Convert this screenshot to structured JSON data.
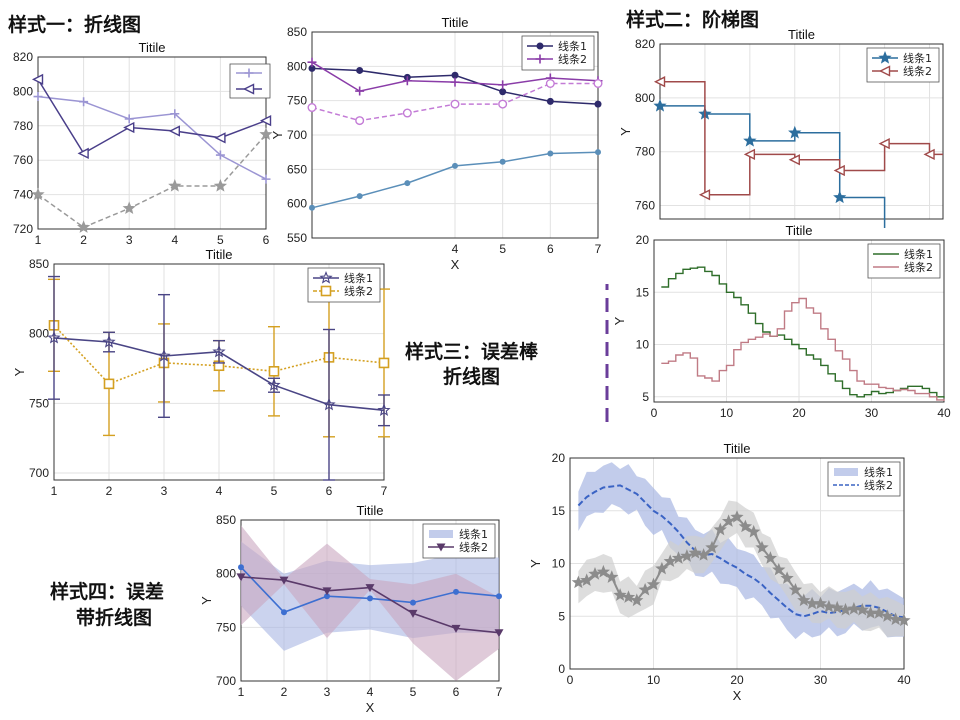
{
  "captions": {
    "style1": "样式一：折线图",
    "style2": "样式二：阶梯图",
    "style3_a": "样式三：误差棒",
    "style3_b": "折线图",
    "style4_a": "样式四：误差",
    "style4_b": "带折线图"
  },
  "colors": {
    "divider": "#6a3d9a",
    "purple_light": "#9b95d3",
    "purple_dark": "#4a3f8a",
    "gray_dash": "#9a9a9a",
    "steel_blue": "#5b8fb9",
    "magenta": "#8a3ca8",
    "magenta_light": "#c37bd6",
    "navy": "#2e2a6b",
    "stair_blue": "#2c6e9e",
    "stair_red": "#a04a4a",
    "dark_green": "#2f6e2a",
    "rose": "#c07b85",
    "gold": "#d4a021",
    "err_purple": "#4a4585",
    "band_mauve": "#c9a7bf",
    "band_blue": "#a8b6e3",
    "line_blue": "#3d6fd1",
    "line_purple": "#5a3a6a",
    "dashed_blue": "#3a63c4",
    "gray_star": "#8c8c8c"
  },
  "chart_data": [
    {
      "id": "style1",
      "type": "line",
      "title": "Titile",
      "xlabel": "",
      "ylabel": "",
      "x": [
        1,
        2,
        3,
        4,
        5,
        6
      ],
      "xlim": [
        1,
        6
      ],
      "ylim": [
        720,
        820
      ],
      "yticks": [
        720,
        740,
        760,
        780,
        800,
        820
      ],
      "xticks": [
        1,
        2,
        3,
        4,
        5,
        6
      ],
      "grid": true,
      "legend": "top-right (cropped)",
      "series": [
        {
          "values": [
            797,
            794,
            784,
            787,
            763,
            749
          ],
          "color": "#9b95d3",
          "marker": "plus",
          "dash": false
        },
        {
          "values": [
            807,
            764,
            779,
            777,
            773,
            783
          ],
          "color": "#4a3f8a",
          "marker": "triangle-left",
          "dash": false
        },
        {
          "values": [
            740,
            721,
            732,
            745,
            745,
            775
          ],
          "color": "#9a9a9a",
          "marker": "star",
          "dash": true
        }
      ]
    },
    {
      "id": "style1b",
      "type": "line",
      "title": "Titile",
      "xlabel": "X",
      "ylabel": "Y",
      "x": [
        1,
        2,
        3,
        4,
        5,
        6,
        7
      ],
      "xlim": [
        1,
        7
      ],
      "ylim": [
        550,
        850
      ],
      "yticks": [
        550,
        600,
        650,
        700,
        750,
        800,
        850
      ],
      "xticks": [
        4,
        5,
        6,
        7
      ],
      "grid": true,
      "legend": "top-right",
      "series": [
        {
          "name": "线条1",
          "values": [
            797,
            794,
            784,
            787,
            763,
            749,
            745
          ],
          "color": "#2e2a6b",
          "marker": "circle",
          "dash": false
        },
        {
          "name": "线条2",
          "values": [
            806,
            764,
            779,
            777,
            773,
            783,
            779
          ],
          "color": "#8a3ca8",
          "marker": "plus",
          "dash": false
        },
        {
          "values": [
            740,
            721,
            732,
            745,
            745,
            775,
            775
          ],
          "color": "#c37bd6",
          "marker": "circle-open",
          "dash": true
        },
        {
          "values": [
            594,
            611,
            630,
            655,
            661,
            673,
            675
          ],
          "color": "#5b8fb9",
          "marker": "dot",
          "dash": false
        }
      ]
    },
    {
      "id": "style2a",
      "type": "line",
      "subtype": "stairs",
      "title": "Titile",
      "xlabel": "",
      "ylabel": "Y",
      "x": [
        1,
        2,
        3,
        4,
        5,
        6,
        7
      ],
      "xlim": [
        1,
        7.3
      ],
      "ylim": [
        755,
        820
      ],
      "yticks": [
        760,
        780,
        800,
        820
      ],
      "grid": true,
      "legend": "top-right",
      "series": [
        {
          "name": "线条1",
          "values": [
            797,
            794,
            784,
            787,
            763,
            749,
            746
          ],
          "color": "#2c6e9e",
          "marker": "star"
        },
        {
          "name": "线条2",
          "values": [
            806,
            764,
            779,
            777,
            773,
            783,
            779
          ],
          "color": "#a04a4a",
          "marker": "triangle-left"
        }
      ]
    },
    {
      "id": "style2b",
      "type": "line",
      "subtype": "stairs",
      "title": "Titile",
      "xlabel": "",
      "ylabel": "Y",
      "xlim": [
        0,
        40
      ],
      "ylim": [
        4.5,
        20
      ],
      "xticks": [
        0,
        10,
        20,
        30,
        40
      ],
      "yticks": [
        5,
        10,
        15,
        20
      ],
      "grid": true,
      "legend": "top-right",
      "series": [
        {
          "name": "线条1",
          "color": "#2f6e2a",
          "values": [
            15.5,
            16.3,
            16.8,
            17.2,
            17.3,
            17.4,
            17.0,
            16.6,
            15.8,
            15.0,
            14.5,
            13.8,
            13.0,
            12.0,
            11.2,
            10.8,
            10.9,
            10.5,
            10.0,
            9.6,
            9.0,
            8.6,
            8.0,
            7.2,
            6.5,
            5.8,
            5.2,
            5.0,
            5.2,
            5.5,
            5.3,
            5.4,
            5.6,
            5.8,
            6.0,
            6.0,
            5.8,
            5.4,
            5.0,
            4.9
          ]
        },
        {
          "name": "线条2",
          "color": "#c07b85",
          "values": [
            8.2,
            8.4,
            9.0,
            9.2,
            8.7,
            7.0,
            6.8,
            6.5,
            7.5,
            8.0,
            9.5,
            10.2,
            10.5,
            10.7,
            11.0,
            10.8,
            11.5,
            13.2,
            14.0,
            14.4,
            13.5,
            13.0,
            11.5,
            10.5,
            9.4,
            8.6,
            7.5,
            6.5,
            6.2,
            6.2,
            5.9,
            5.8,
            5.6,
            5.7,
            5.6,
            5.3,
            5.3,
            5.0,
            4.7,
            4.6
          ]
        }
      ]
    },
    {
      "id": "style3",
      "type": "line",
      "subtype": "errorbar",
      "title": "Titile",
      "xlabel": "",
      "ylabel": "Y",
      "x": [
        1,
        2,
        3,
        4,
        5,
        6,
        7
      ],
      "xlim": [
        1,
        7
      ],
      "ylim": [
        695,
        850
      ],
      "yticks": [
        700,
        750,
        800,
        850
      ],
      "xticks": [
        1,
        2,
        3,
        4,
        5,
        6,
        7
      ],
      "grid": true,
      "legend": "top-right",
      "series": [
        {
          "name": "线条1",
          "values": [
            797,
            794,
            784,
            787,
            763,
            749,
            745
          ],
          "err": [
            44,
            7,
            44,
            8,
            5,
            54,
            11
          ],
          "color": "#4a4585",
          "marker": "hexagram"
        },
        {
          "name": "线条2",
          "values": [
            806,
            764,
            779,
            777,
            773,
            783,
            779
          ],
          "err": [
            33,
            37,
            28,
            18,
            32,
            57,
            53
          ],
          "color": "#d4a021",
          "marker": "square",
          "dash": true
        }
      ]
    },
    {
      "id": "style4a",
      "type": "area",
      "subtype": "errorband",
      "title": "Titile",
      "xlabel": "X",
      "ylabel": "Y",
      "x": [
        1,
        2,
        3,
        4,
        5,
        6,
        7
      ],
      "xlim": [
        1,
        7
      ],
      "ylim": [
        700,
        850
      ],
      "yticks": [
        700,
        750,
        800,
        850
      ],
      "xticks": [
        1,
        2,
        3,
        4,
        5,
        6,
        7
      ],
      "grid": true,
      "legend": "top-right",
      "series": [
        {
          "name": "线条1",
          "values": [
            806,
            764,
            779,
            777,
            773,
            783,
            779
          ],
          "upper": [
            830,
            800,
            812,
            808,
            810,
            818,
            815
          ],
          "lower": [
            770,
            728,
            745,
            748,
            740,
            745,
            745
          ],
          "color": "#3d6fd1",
          "band": "#a8b6e3"
        },
        {
          "name": "线条2",
          "values": [
            797,
            794,
            784,
            787,
            763,
            749,
            745
          ],
          "upper": [
            845,
            795,
            828,
            795,
            790,
            800,
            778
          ],
          "lower": [
            752,
            790,
            740,
            785,
            735,
            700,
            730
          ],
          "color": "#5a3a6a",
          "band": "#c9a7bf",
          "marker": "triangle-down"
        }
      ]
    },
    {
      "id": "style4b",
      "type": "area",
      "subtype": "errorband",
      "title": "Titile",
      "xlabel": "X",
      "ylabel": "Y",
      "xlim": [
        0,
        40
      ],
      "ylim": [
        0,
        20
      ],
      "xticks": [
        0,
        10,
        20,
        30,
        40
      ],
      "yticks": [
        0,
        5,
        10,
        15,
        20
      ],
      "grid": true,
      "legend": "top-right",
      "series": [
        {
          "name": "线条1",
          "color": "#a8b6e3",
          "band_only": true
        },
        {
          "name": "线条2",
          "color": "#3a63c4",
          "dash": true,
          "values": [
            15.5,
            16.3,
            16.8,
            17.2,
            17.3,
            17.4,
            17.0,
            16.6,
            15.8,
            15.0,
            14.5,
            13.8,
            13.0,
            12.0,
            11.2,
            10.8,
            10.9,
            10.5,
            10.0,
            9.6,
            9.0,
            8.6,
            8.0,
            7.2,
            6.5,
            5.8,
            5.2,
            5.0,
            5.2,
            5.5,
            5.3,
            5.4,
            5.6,
            5.8,
            6.0,
            6.0,
            5.8,
            5.4,
            5.0,
            4.9
          ],
          "spread": 2.2
        },
        {
          "color": "#8c8c8c",
          "marker": "star",
          "values": [
            8.2,
            8.4,
            9.0,
            9.2,
            8.7,
            7.0,
            6.8,
            6.5,
            7.5,
            8.0,
            9.5,
            10.2,
            10.5,
            10.7,
            11.0,
            10.8,
            11.5,
            13.2,
            14.0,
            14.4,
            13.5,
            13.0,
            11.5,
            10.5,
            9.4,
            8.6,
            7.5,
            6.5,
            6.2,
            6.2,
            5.9,
            5.8,
            5.6,
            5.7,
            5.6,
            5.3,
            5.3,
            5.0,
            4.7,
            4.6
          ],
          "spread": 1.8
        }
      ]
    }
  ]
}
